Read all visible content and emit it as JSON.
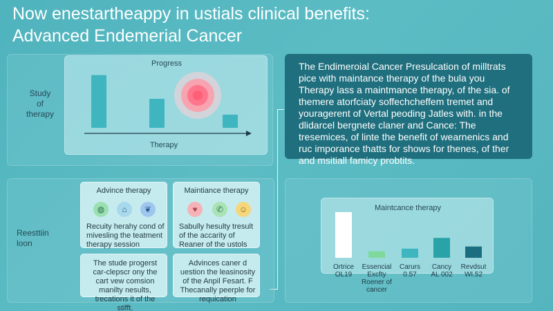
{
  "title": {
    "line1": "Now enestartheappy in ustials clinical benefits:",
    "line2": "Advanced Endemerial Cancer"
  },
  "progress_chart": {
    "title": "Progress",
    "side_label": "Study\nof\ntherapy",
    "xlabel": "Therapy",
    "values": [
      10,
      5.5,
      2.5
    ],
    "ymax": 11,
    "bar_color": "#3fb6bf",
    "target_colors": [
      "#ff6f86",
      "#ff9aa8",
      "#ffd0d6"
    ]
  },
  "description_panel": {
    "text": "The Endimeroial Cancer Presulcation of milltrats pice with maintance therapy of the bula you Therapy lass a maintmance therapy, of the sia. of themere atorfciaty soffechcheffem tremet and youragerent of Vertal peoding Jatles with. in the dlidarcel bergnete claner and Cance: The tresemices, of linte the benefit of wearnenics and ruc imporance thatts for shows for thenes, of ther and msitiall famicy probtits.",
    "background": "#1f6f7e"
  },
  "result_section": {
    "side_label": "Reesttiin\nloon",
    "advice_card": {
      "title": "Advince therapy",
      "icons": [
        "globe-icon",
        "building-icon",
        "leaf-icon"
      ],
      "text": "Recuity herahy cond of mivesling the teatment therapy session"
    },
    "maint_card": {
      "title": "Maintiance therapy",
      "icons": [
        "heart-icon",
        "phone-icon",
        "face-icon"
      ],
      "text": "Sabully hesulty tresult of the accarity of Reaner of the ustols"
    },
    "bottom_left_text": "The stude progerst car-clepscr ony the cart vew comsion manilty nesults, trecations it of the stifft.",
    "bottom_mid_text": "Advinces caner d uestion the leasinosity of the Anpil Fesart. F Thecanally peerple for requication"
  },
  "maint_chart": {
    "title": "Maintcance therapy",
    "categories": [
      "Ortrice\nOL19",
      "Essencial\nExcfty\nRoener of\ncancer",
      "Carurs\n0.57",
      "Cancy\nAL 002",
      "Revdsut\nWI.52"
    ],
    "values": [
      8.5,
      1.2,
      1.7,
      3.7,
      2.1
    ],
    "ymax": 9,
    "colors": [
      "#ffffff",
      "#7ed99a",
      "#3fb6bf",
      "#2aa3a8",
      "#1b6e7f"
    ]
  },
  "colors": {
    "background": "#4fb3bd",
    "panel": "#c8eef2",
    "accent_dark": "#1f6f7e"
  }
}
